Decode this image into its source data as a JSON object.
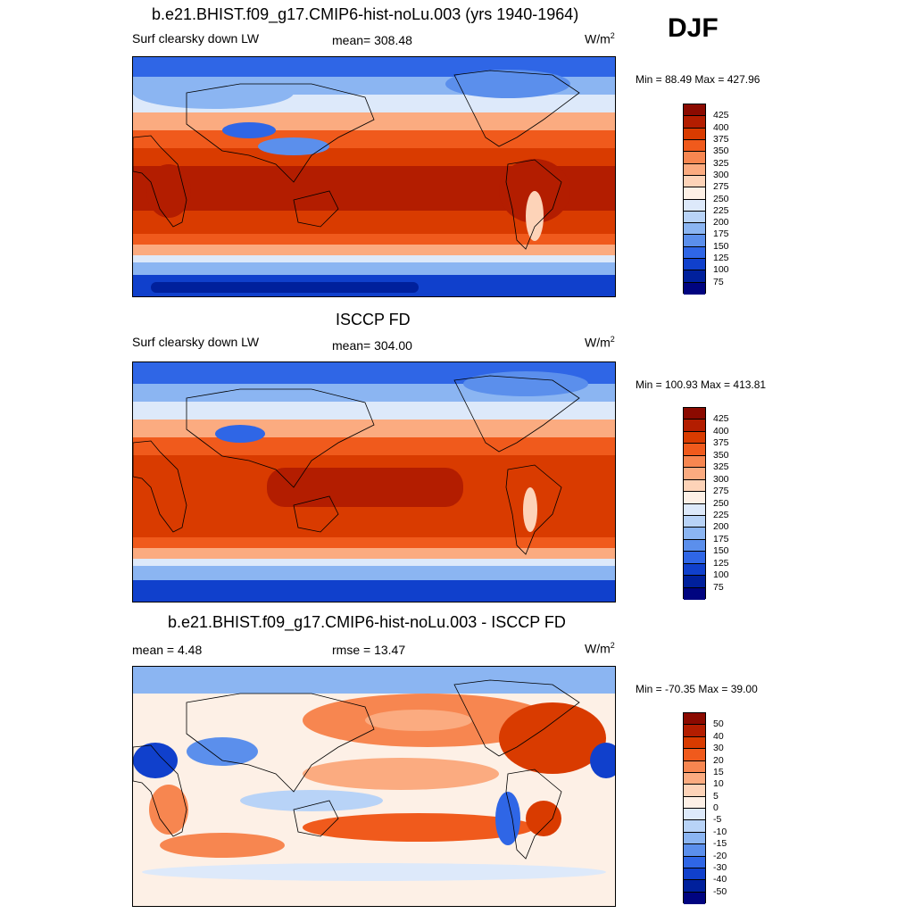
{
  "season": "DJF",
  "panels": [
    {
      "title": "b.e21.BHIST.f09_g17.CMIP6-hist-noLu.003 (yrs 1940-1964)",
      "left_label": "Surf clearsky down LW",
      "center_label": "mean= 308.48",
      "units_base": "W/m",
      "units_exp": "2",
      "minmax": "Min =  88.49 Max = 427.96",
      "colorbar_labels": [
        "425",
        "400",
        "375",
        "350",
        "325",
        "300",
        "275",
        "250",
        "225",
        "200",
        "175",
        "150",
        "125",
        "100",
        "75"
      ],
      "colors": [
        "#8b0a00",
        "#b31d00",
        "#d93b00",
        "#f05a1c",
        "#f78650",
        "#fbab80",
        "#fdd3b8",
        "#fdf0e6",
        "#dde9fa",
        "#b8d3f7",
        "#8bb5f2",
        "#5b8fec",
        "#2f66e6",
        "#1040cc",
        "#00209c",
        "#000480"
      ]
    },
    {
      "title": "ISCCP FD",
      "left_label": "Surf clearsky down LW",
      "center_label": "mean= 304.00",
      "units_base": "W/m",
      "units_exp": "2",
      "minmax": "Min = 100.93 Max = 413.81",
      "colorbar_labels": [
        "425",
        "400",
        "375",
        "350",
        "325",
        "300",
        "275",
        "250",
        "225",
        "200",
        "175",
        "150",
        "125",
        "100",
        "75"
      ],
      "colors": [
        "#8b0a00",
        "#b31d00",
        "#d93b00",
        "#f05a1c",
        "#f78650",
        "#fbab80",
        "#fdd3b8",
        "#fdf0e6",
        "#dde9fa",
        "#b8d3f7",
        "#8bb5f2",
        "#5b8fec",
        "#2f66e6",
        "#1040cc",
        "#00209c",
        "#000480"
      ]
    },
    {
      "title": "b.e21.BHIST.f09_g17.CMIP6-hist-noLu.003 - ISCCP FD",
      "left_label": "mean =   4.48",
      "center_label": "rmse =  13.47",
      "units_base": "W/m",
      "units_exp": "2",
      "minmax": "Min = -70.35 Max =  39.00",
      "colorbar_labels": [
        "50",
        "40",
        "30",
        "20",
        "15",
        "10",
        "5",
        "0",
        "-5",
        "-10",
        "-15",
        "-20",
        "-30",
        "-40",
        "-50"
      ],
      "colors": [
        "#8b0a00",
        "#b31d00",
        "#d93b00",
        "#f05a1c",
        "#f78650",
        "#fbab80",
        "#fdd3b8",
        "#fdf0e6",
        "#dde9fa",
        "#b8d3f7",
        "#8bb5f2",
        "#5b8fec",
        "#2f66e6",
        "#1040cc",
        "#00209c",
        "#000480"
      ]
    }
  ],
  "chart_data": [
    {
      "type": "heatmap",
      "title": "b.e21.BHIST.f09_g17.CMIP6-hist-noLu.003 (yrs 1940-1964)",
      "variable": "Surf clearsky down LW",
      "season": "DJF",
      "units": "W/m2",
      "mean": 308.48,
      "min": 88.49,
      "max": 427.96,
      "levels": [
        75,
        100,
        125,
        150,
        175,
        200,
        225,
        250,
        275,
        300,
        325,
        350,
        375,
        400,
        425
      ]
    },
    {
      "type": "heatmap",
      "title": "ISCCP FD",
      "variable": "Surf clearsky down LW",
      "season": "DJF",
      "units": "W/m2",
      "mean": 304.0,
      "min": 100.93,
      "max": 413.81,
      "levels": [
        75,
        100,
        125,
        150,
        175,
        200,
        225,
        250,
        275,
        300,
        325,
        350,
        375,
        400,
        425
      ]
    },
    {
      "type": "heatmap",
      "title": "b.e21.BHIST.f09_g17.CMIP6-hist-noLu.003 - ISCCP FD",
      "season": "DJF",
      "units": "W/m2",
      "mean": 4.48,
      "rmse": 13.47,
      "min": -70.35,
      "max": 39.0,
      "levels": [
        -50,
        -40,
        -30,
        -20,
        -15,
        -10,
        -5,
        0,
        5,
        10,
        15,
        20,
        30,
        40,
        50
      ]
    }
  ]
}
